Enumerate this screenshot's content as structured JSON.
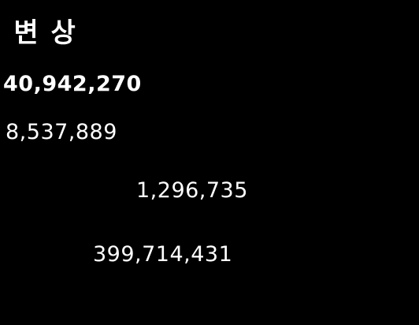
{
  "heading": ") 변 상",
  "values": [
    "40,942,270",
    "8,537,889",
    "1,296,735",
    "399,714,431"
  ]
}
